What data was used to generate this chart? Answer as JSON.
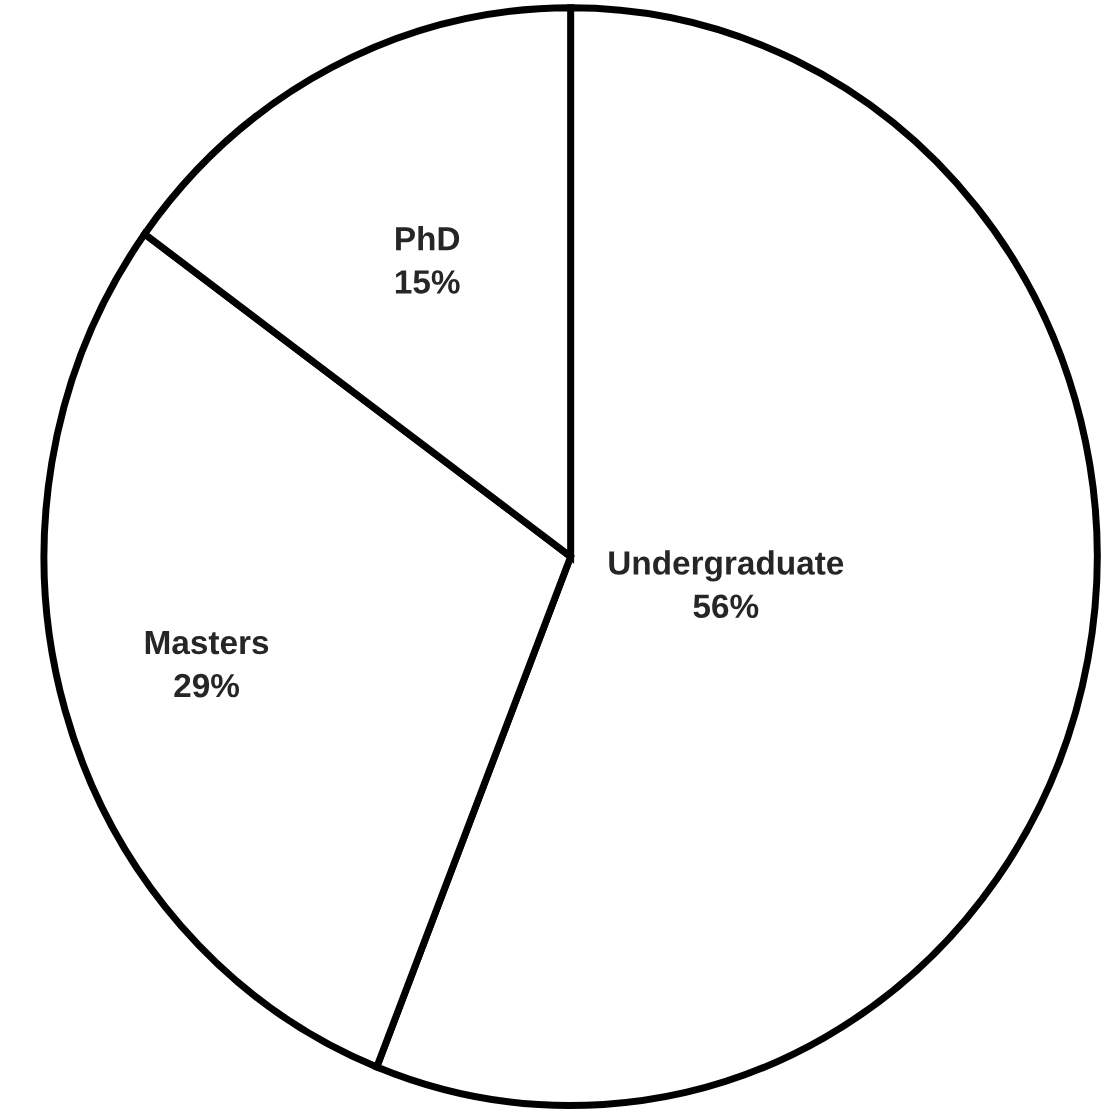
{
  "chart_data": {
    "type": "pie",
    "categories": [
      "Undergraduate",
      "Masters",
      "PhD"
    ],
    "values": [
      56,
      29,
      15
    ],
    "colors": [
      "#ffffff",
      "#ffffff",
      "#ffffff"
    ],
    "value_labels": [
      "56%",
      "29%",
      "15%"
    ]
  }
}
